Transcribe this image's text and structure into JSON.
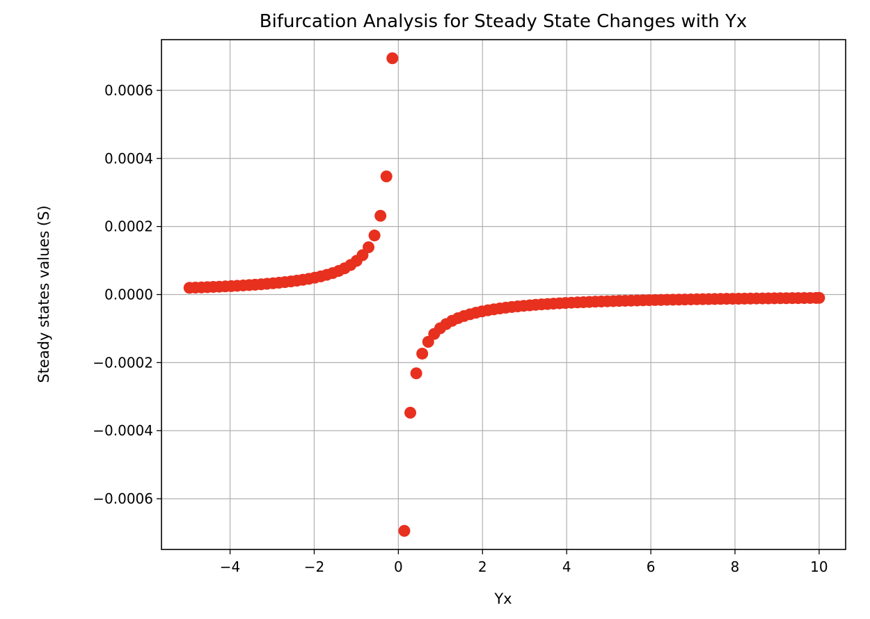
{
  "chart_data": {
    "type": "scatter",
    "title": "Bifurcation Analysis for Steady State Changes with Yx",
    "xlabel": "Yx",
    "ylabel": "Steady states values (S)",
    "xlim": [
      -5.63,
      10.63
    ],
    "ylim": [
      -0.000749,
      0.000749
    ],
    "xticks": [
      -4,
      -2,
      0,
      2,
      4,
      6,
      8,
      10
    ],
    "xtick_labels": [
      "−4",
      "−2",
      "0",
      "2",
      "4",
      "6",
      "8",
      "10"
    ],
    "yticks": [
      -0.0006,
      -0.0004,
      -0.0002,
      0.0,
      0.0002,
      0.0004,
      0.0006
    ],
    "ytick_labels": [
      "−0.0006",
      "−0.0004",
      "−0.0002",
      "0.0000",
      "0.0002",
      "0.0004",
      "0.0006"
    ],
    "grid": true,
    "marker_color": "#e8301f",
    "series": [
      {
        "name": "",
        "points": [
          [
            -4.9645,
            1.98e-05
          ],
          [
            -4.8227,
            2.04e-05
          ],
          [
            -4.6809,
            2.1e-05
          ],
          [
            -4.539,
            2.17e-05
          ],
          [
            -4.3972,
            2.24e-05
          ],
          [
            -4.2553,
            2.31e-05
          ],
          [
            -4.1135,
            2.39e-05
          ],
          [
            -3.9716,
            2.48e-05
          ],
          [
            -3.8298,
            2.57e-05
          ],
          [
            -3.6879,
            2.67e-05
          ],
          [
            -3.5461,
            2.78e-05
          ],
          [
            -3.4043,
            2.89e-05
          ],
          [
            -3.2624,
            3.02e-05
          ],
          [
            -3.1206,
            3.16e-05
          ],
          [
            -2.9787,
            3.31e-05
          ],
          [
            -2.8369,
            3.47e-05
          ],
          [
            -2.695,
            3.65e-05
          ],
          [
            -2.5532,
            3.86e-05
          ],
          [
            -2.4113,
            4.09e-05
          ],
          [
            -2.2695,
            4.34e-05
          ],
          [
            -2.1277,
            4.63e-05
          ],
          [
            -1.9858,
            4.96e-05
          ],
          [
            -1.844,
            5.34e-05
          ],
          [
            -1.7021,
            5.79e-05
          ],
          [
            -1.5603,
            6.31e-05
          ],
          [
            -1.4184,
            6.94e-05
          ],
          [
            -1.2766,
            7.71e-05
          ],
          [
            -1.1348,
            8.68e-05
          ],
          [
            -0.9929,
            9.92e-05
          ],
          [
            -0.8511,
            0.0001157
          ],
          [
            -0.7092,
            0.0001389
          ],
          [
            -0.5674,
            0.0001736
          ],
          [
            -0.4255,
            0.0002315
          ],
          [
            -0.2837,
            0.0003472
          ],
          [
            -0.1418,
            0.0006944
          ],
          [
            0.1418,
            -0.0006944
          ],
          [
            0.2837,
            -0.0003472
          ],
          [
            0.4255,
            -0.0002315
          ],
          [
            0.5674,
            -0.0001736
          ],
          [
            0.7092,
            -0.0001389
          ],
          [
            0.8511,
            -0.0001157
          ],
          [
            0.9929,
            -9.92e-05
          ],
          [
            1.1348,
            -8.68e-05
          ],
          [
            1.2766,
            -7.71e-05
          ],
          [
            1.4184,
            -6.94e-05
          ],
          [
            1.5603,
            -6.31e-05
          ],
          [
            1.7021,
            -5.79e-05
          ],
          [
            1.844,
            -5.34e-05
          ],
          [
            1.9858,
            -4.96e-05
          ],
          [
            2.1277,
            -4.63e-05
          ],
          [
            2.2695,
            -4.34e-05
          ],
          [
            2.4113,
            -4.09e-05
          ],
          [
            2.5532,
            -3.86e-05
          ],
          [
            2.695,
            -3.65e-05
          ],
          [
            2.8369,
            -3.47e-05
          ],
          [
            2.9787,
            -3.31e-05
          ],
          [
            3.1206,
            -3.16e-05
          ],
          [
            3.2624,
            -3.02e-05
          ],
          [
            3.4043,
            -2.89e-05
          ],
          [
            3.5461,
            -2.78e-05
          ],
          [
            3.6879,
            -2.67e-05
          ],
          [
            3.8298,
            -2.57e-05
          ],
          [
            3.9716,
            -2.48e-05
          ],
          [
            4.1135,
            -2.39e-05
          ],
          [
            4.2553,
            -2.31e-05
          ],
          [
            4.3972,
            -2.24e-05
          ],
          [
            4.539,
            -2.17e-05
          ],
          [
            4.6809,
            -2.1e-05
          ],
          [
            4.8227,
            -2.04e-05
          ],
          [
            4.9645,
            -1.98e-05
          ],
          [
            5.1064,
            -1.93e-05
          ],
          [
            5.2482,
            -1.87e-05
          ],
          [
            5.3901,
            -1.83e-05
          ],
          [
            5.5319,
            -1.78e-05
          ],
          [
            5.6738,
            -1.74e-05
          ],
          [
            5.8156,
            -1.69e-05
          ],
          [
            5.9574,
            -1.65e-05
          ],
          [
            6.0993,
            -1.61e-05
          ],
          [
            6.2411,
            -1.58e-05
          ],
          [
            6.383,
            -1.54e-05
          ],
          [
            6.5248,
            -1.51e-05
          ],
          [
            6.6667,
            -1.48e-05
          ],
          [
            6.8085,
            -1.45e-05
          ],
          [
            6.9504,
            -1.42e-05
          ],
          [
            7.0922,
            -1.39e-05
          ],
          [
            7.234,
            -1.36e-05
          ],
          [
            7.3759,
            -1.34e-05
          ],
          [
            7.5177,
            -1.31e-05
          ],
          [
            7.6596,
            -1.29e-05
          ],
          [
            7.8014,
            -1.26e-05
          ],
          [
            7.9433,
            -1.24e-05
          ],
          [
            8.0851,
            -1.22e-05
          ],
          [
            8.227,
            -1.2e-05
          ],
          [
            8.3688,
            -1.18e-05
          ],
          [
            8.5106,
            -1.16e-05
          ],
          [
            8.6525,
            -1.14e-05
          ],
          [
            8.7943,
            -1.12e-05
          ],
          [
            8.9362,
            -1.1e-05
          ],
          [
            9.078,
            -1.08e-05
          ],
          [
            9.2199,
            -1.07e-05
          ],
          [
            9.3617,
            -1.05e-05
          ],
          [
            9.5035,
            -1.04e-05
          ],
          [
            9.6454,
            -1.02e-05
          ],
          [
            9.7872,
            -1.01e-05
          ],
          [
            9.9291,
            -9.9e-06
          ],
          [
            10.0,
            -9.8e-06
          ]
        ]
      }
    ]
  }
}
